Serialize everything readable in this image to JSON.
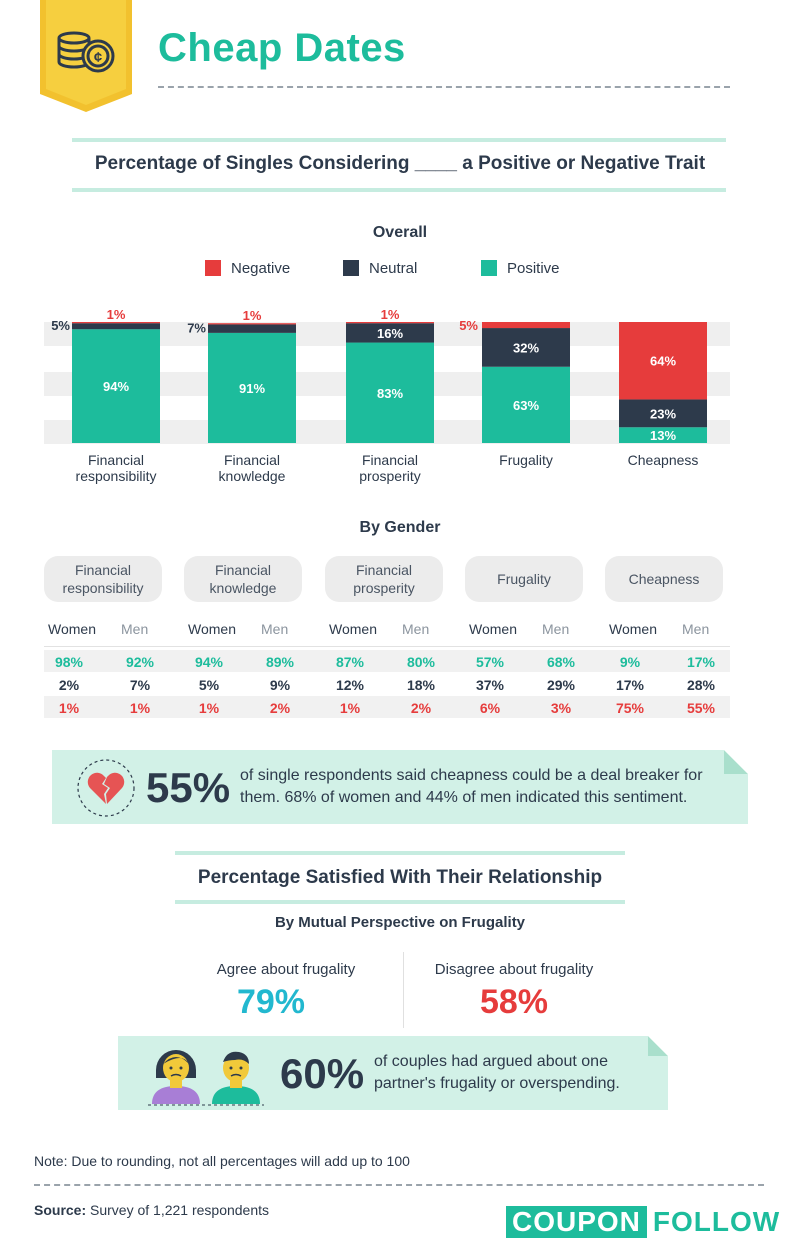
{
  "header": {
    "title": "Cheap Dates",
    "icon": "coins-icon"
  },
  "overall_section": {
    "title": "Percentage of Singles Considering ____ a Positive or Negative Trait",
    "subtitle": "Overall"
  },
  "legend": [
    {
      "label": "Negative",
      "color": "#e63c3c"
    },
    {
      "label": "Neutral",
      "color": "#2d3a4b"
    },
    {
      "label": "Positive",
      "color": "#1dbc9c"
    }
  ],
  "chart_data": {
    "type": "bar",
    "stacked": true,
    "categories": [
      "Financial\nresponsibility",
      "Financial\nknowledge",
      "Financial\nprosperity",
      "Frugality",
      "Cheapness"
    ],
    "series": [
      {
        "name": "Positive",
        "color": "#1dbc9c",
        "values": [
          94,
          91,
          83,
          63,
          13
        ]
      },
      {
        "name": "Neutral",
        "color": "#2d3a4b",
        "values": [
          5,
          7,
          16,
          32,
          23
        ]
      },
      {
        "name": "Negative",
        "color": "#e63c3c",
        "values": [
          1,
          1,
          1,
          5,
          64
        ]
      }
    ],
    "ylim": [
      0,
      100
    ],
    "legend_position": "top"
  },
  "gender_section": {
    "title": "By Gender",
    "women_label": "Women",
    "men_label": "Men",
    "groups": [
      {
        "label": "Financial\nresponsibility",
        "women": [
          "98%",
          "2%",
          "1%"
        ],
        "men": [
          "92%",
          "7%",
          "1%"
        ]
      },
      {
        "label": "Financial\nknowledge",
        "women": [
          "94%",
          "5%",
          "1%"
        ],
        "men": [
          "89%",
          "9%",
          "2%"
        ]
      },
      {
        "label": "Financial\nprosperity",
        "women": [
          "87%",
          "12%",
          "1%"
        ],
        "men": [
          "80%",
          "18%",
          "2%"
        ]
      },
      {
        "label": "Frugality",
        "women": [
          "57%",
          "37%",
          "6%"
        ],
        "men": [
          "68%",
          "29%",
          "3%"
        ]
      },
      {
        "label": "Cheapness",
        "women": [
          "9%",
          "17%",
          "75%"
        ],
        "men": [
          "17%",
          "28%",
          "55%"
        ]
      }
    ]
  },
  "callout1": {
    "icon": "broken-heart-icon",
    "stat": "55%",
    "line1": "of single respondents said cheapness could be a deal breaker for",
    "line2": "them. 68% of women and 44% of men indicated this sentiment."
  },
  "relationship_section": {
    "title": "Percentage Satisfied With Their Relationship",
    "subtitle": "By Mutual Perspective on Frugality",
    "agree_label": "Agree about frugality",
    "agree_value": "79%",
    "disagree_label": "Disagree about frugality",
    "disagree_value": "58%"
  },
  "callout2": {
    "icon": "couple-icon",
    "stat": "60%",
    "line1": "of couples had argued about one",
    "line2": "partner's frugality or overspending."
  },
  "footer": {
    "note": "Note: Due to rounding, not all percentages will add up to 100",
    "source_label": "Source:",
    "source_text": "Survey of 1,221 respondents",
    "logo_part1": "COUPON",
    "logo_part2": "FOLLOW"
  }
}
